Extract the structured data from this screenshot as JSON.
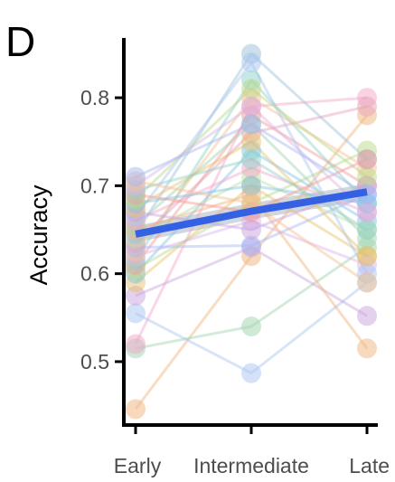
{
  "panel_label": "D",
  "colors": {
    "trend_line": "#3461e3",
    "trend_band": "#9aa4b8",
    "axis": "#000000",
    "subjects": [
      "#f0b37d",
      "#9fd3b0",
      "#f4a6c8",
      "#a9c6f0",
      "#c7a4de",
      "#e8c26a",
      "#7fc4e8",
      "#b9d98a",
      "#f29a9a",
      "#8fd1c7",
      "#d9b3e6",
      "#f5c28f",
      "#a3b8f5",
      "#e7a1b8",
      "#bde0a6",
      "#9ec0d9"
    ]
  },
  "chart_data": {
    "type": "line",
    "title": "",
    "xlabel": "",
    "ylabel": "Accuracy",
    "categories": [
      "Early",
      "Intermediate",
      "Late"
    ],
    "yticks": [
      0.5,
      0.6,
      0.7,
      0.8
    ],
    "ylim": [
      0.43,
      0.87
    ],
    "grid": false,
    "legend": "none",
    "trend": {
      "values": [
        0.645,
        0.671,
        0.693
      ]
    },
    "series": [
      {
        "values": [
          0.446,
          0.62,
          0.78
        ]
      },
      {
        "values": [
          0.515,
          0.54,
          0.63
        ]
      },
      {
        "values": [
          0.52,
          0.79,
          0.8
        ]
      },
      {
        "values": [
          0.555,
          0.487,
          0.59
        ]
      },
      {
        "values": [
          0.575,
          0.63,
          0.552
        ]
      },
      {
        "values": [
          0.59,
          0.7,
          0.62
        ]
      },
      {
        "values": [
          0.6,
          0.74,
          0.66
        ]
      },
      {
        "values": [
          0.605,
          0.68,
          0.74
        ]
      },
      {
        "values": [
          0.61,
          0.78,
          0.7
        ]
      },
      {
        "values": [
          0.615,
          0.82,
          0.68
        ]
      },
      {
        "values": [
          0.62,
          0.66,
          0.61
        ]
      },
      {
        "values": [
          0.625,
          0.8,
          0.72
        ]
      },
      {
        "values": [
          0.63,
          0.632,
          0.69
        ]
      },
      {
        "values": [
          0.635,
          0.76,
          0.79
        ]
      },
      {
        "values": [
          0.64,
          0.71,
          0.65
        ]
      },
      {
        "values": [
          0.645,
          0.85,
          0.73
        ]
      },
      {
        "values": [
          0.65,
          0.69,
          0.515
        ]
      },
      {
        "values": [
          0.655,
          0.77,
          0.64
        ]
      },
      {
        "values": [
          0.66,
          0.72,
          0.67
        ]
      },
      {
        "values": [
          0.665,
          0.84,
          0.6
        ]
      },
      {
        "values": [
          0.67,
          0.65,
          0.7
        ]
      },
      {
        "values": [
          0.675,
          0.75,
          0.62
        ]
      },
      {
        "values": [
          0.68,
          0.7,
          0.68
        ]
      },
      {
        "values": [
          0.685,
          0.81,
          0.71
        ]
      },
      {
        "values": [
          0.69,
          0.67,
          0.73
        ]
      },
      {
        "values": [
          0.695,
          0.73,
          0.65
        ]
      },
      {
        "values": [
          0.7,
          0.79,
          0.67
        ]
      },
      {
        "values": [
          0.705,
          0.68,
          0.59
        ]
      },
      {
        "values": [
          0.71,
          0.77,
          0.69
        ]
      }
    ]
  }
}
